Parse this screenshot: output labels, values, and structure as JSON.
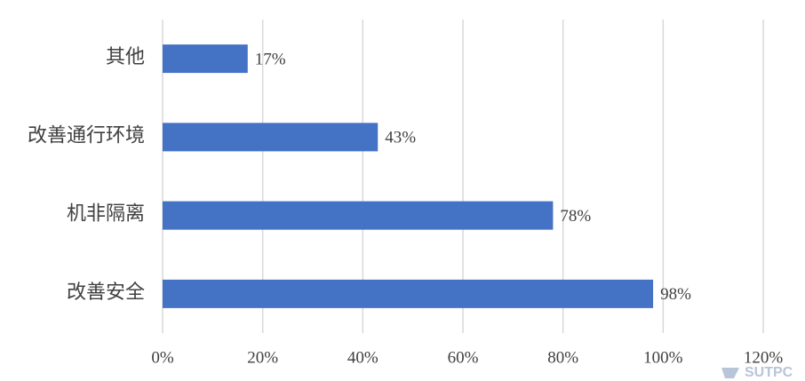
{
  "chart_data": {
    "type": "bar",
    "orientation": "horizontal",
    "categories": [
      "其他",
      "改善通行环境",
      "机非隔离",
      "改善安全"
    ],
    "values": [
      17,
      43,
      78,
      98
    ],
    "value_labels": [
      "17%",
      "43%",
      "78%",
      "98%"
    ],
    "color": "#4472c4",
    "xlim": [
      0,
      120
    ],
    "xticks": [
      {
        "value": 0,
        "label": "0%"
      },
      {
        "value": 20,
        "label": "20%"
      },
      {
        "value": 40,
        "label": "40%"
      },
      {
        "value": 60,
        "label": "60%"
      },
      {
        "value": 80,
        "label": "80%"
      },
      {
        "value": 100,
        "label": "100%"
      },
      {
        "value": 120,
        "label": "120%"
      }
    ],
    "grid": true,
    "watermark": "SUTPC"
  }
}
